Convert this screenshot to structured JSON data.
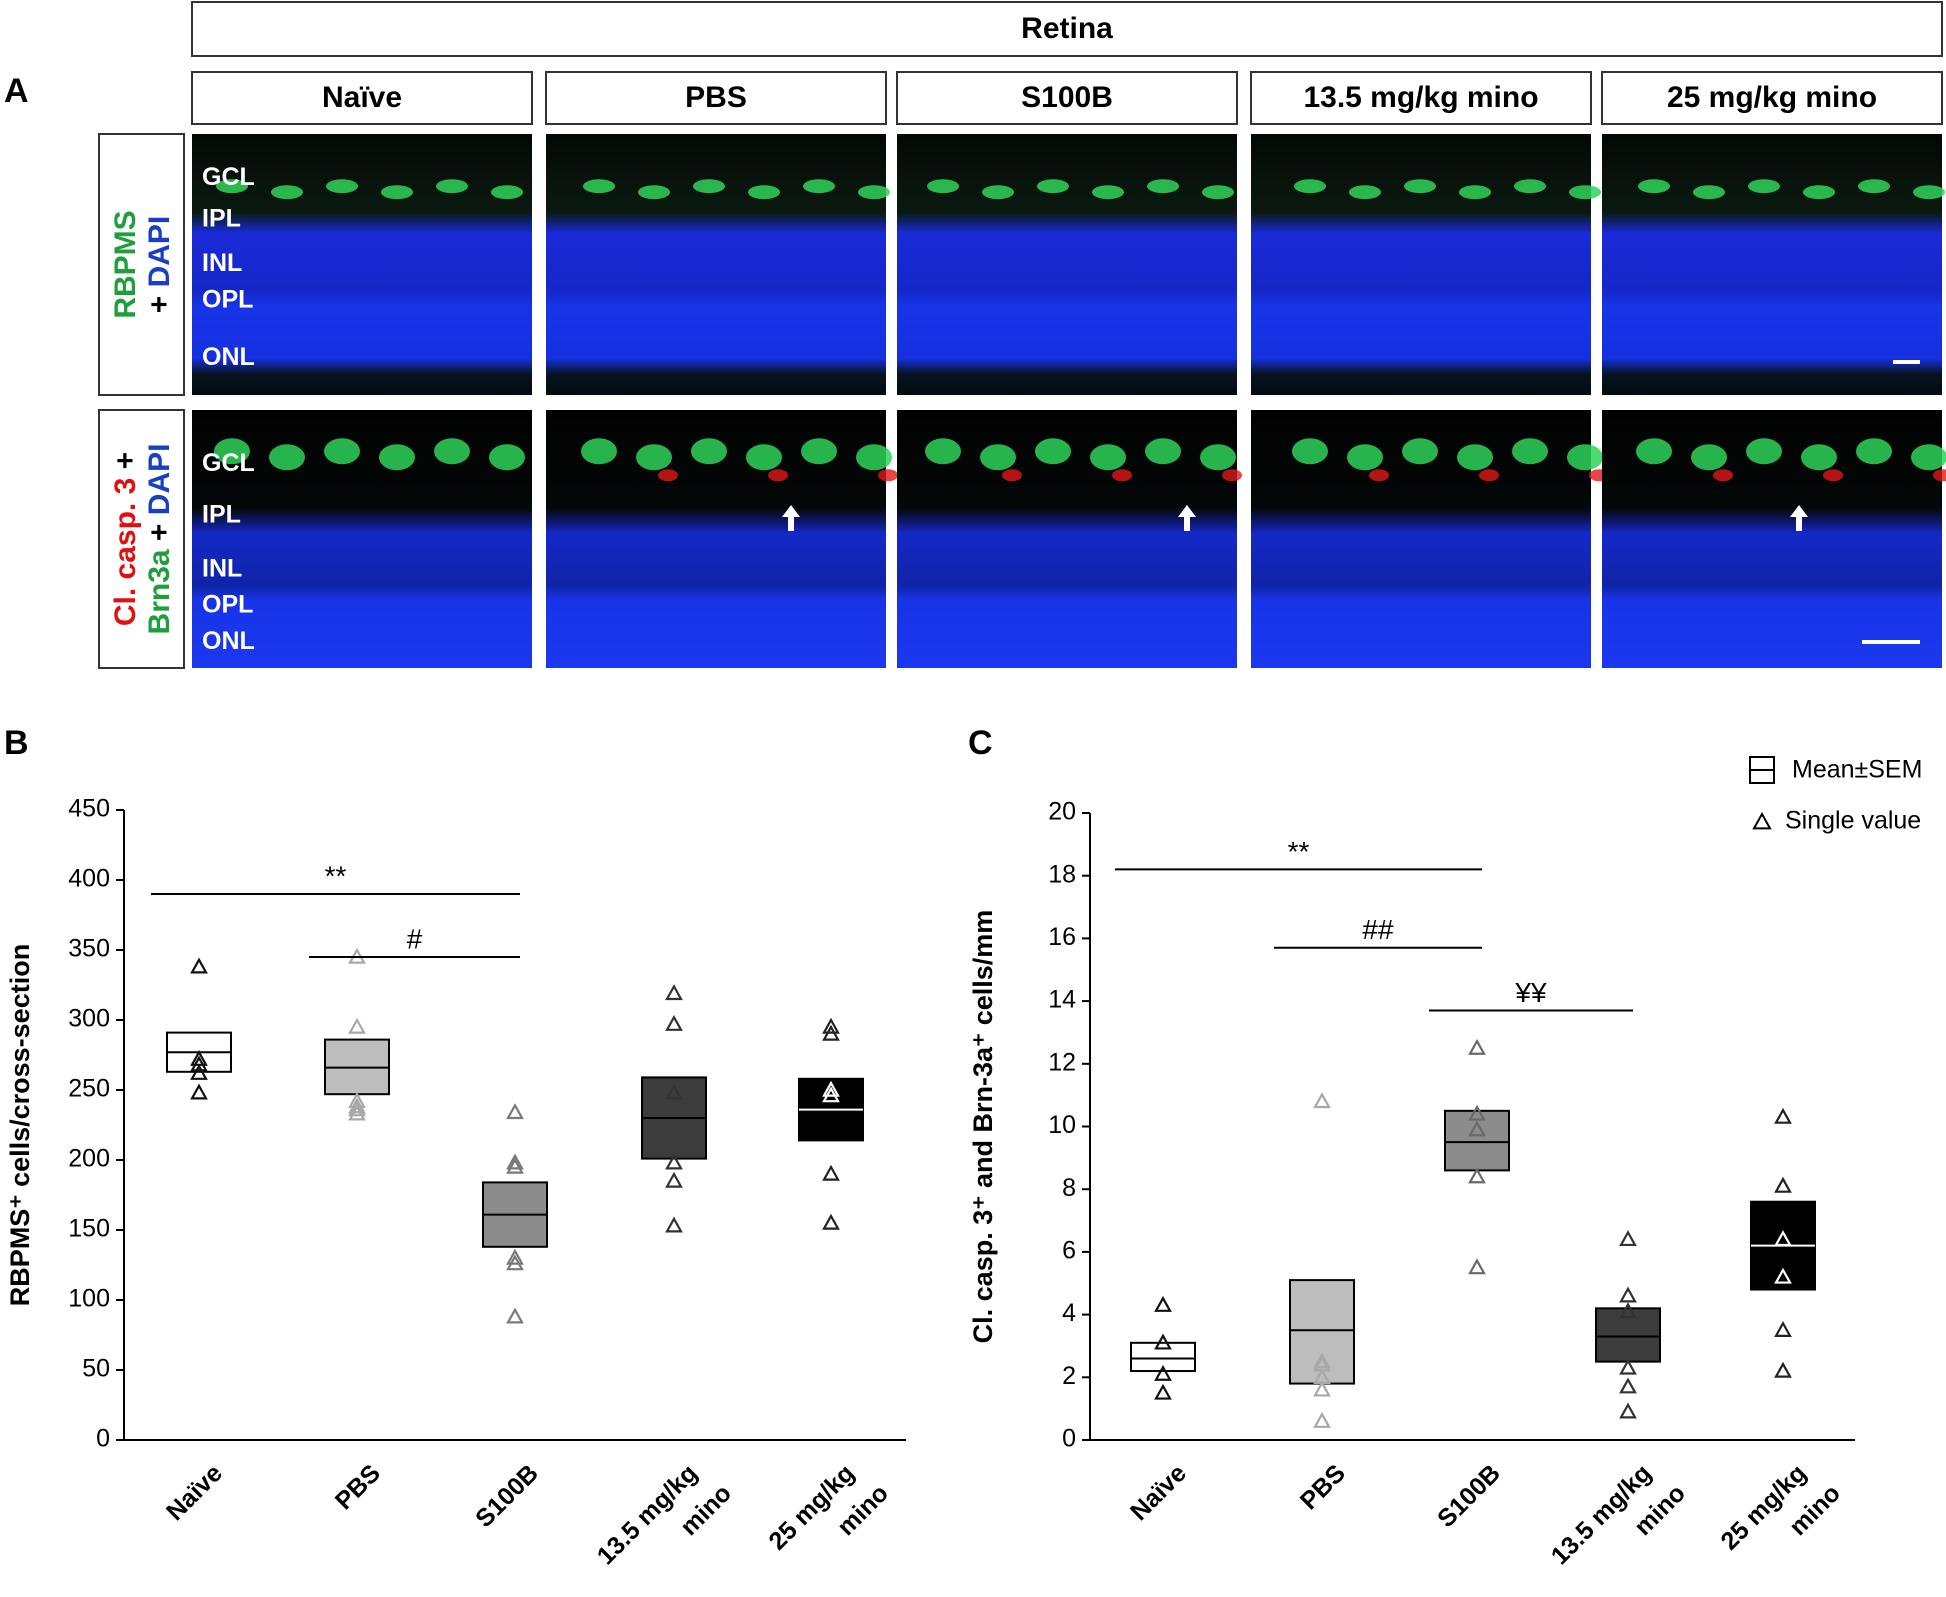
{
  "panel_a": {
    "letter": "A",
    "header": "Retina",
    "columns": [
      "Naïve",
      "PBS",
      "S100B",
      "13.5 mg/kg mino",
      "25 mg/kg mino"
    ],
    "row_labels": [
      [
        [
          {
            "text": "RBPMS",
            "color": "#1e9e3c"
          }
        ],
        [
          {
            "text": "+ ",
            "color": "#000000"
          },
          {
            "text": "DAPI",
            "color": "#1a3fc0"
          }
        ]
      ],
      [
        [
          {
            "text": "Cl. casp. 3",
            "color": "#e01010"
          },
          {
            "text": " +",
            "color": "#000000"
          }
        ],
        [
          {
            "text": "Brn3a",
            "color": "#1e9e3c"
          },
          {
            "text": " + ",
            "color": "#000000"
          },
          {
            "text": "DAPI",
            "color": "#1a3fc0"
          }
        ]
      ]
    ],
    "layers": [
      "GCL",
      "IPL",
      "INL",
      "OPL",
      "ONL"
    ]
  },
  "chart_data": [
    {
      "type": "box",
      "letter": "B",
      "ylabel": "RBPMS⁺ cells/cross-section",
      "categories": [
        [
          "Naïve"
        ],
        [
          "PBS"
        ],
        [
          "S100B"
        ],
        [
          "13.5 mg/kg",
          "mino"
        ],
        [
          "25 mg/kg",
          "mino"
        ]
      ],
      "ylim": [
        0,
        450
      ],
      "yticks": [
        0,
        50,
        100,
        150,
        200,
        250,
        300,
        350,
        400,
        450
      ],
      "groups": [
        {
          "mean": 277,
          "sem": [
            263,
            291
          ],
          "points": [
            338,
            272,
            268,
            262,
            248
          ],
          "box_color": "#ffffff",
          "line_color": "#000000",
          "point_color": "#111111"
        },
        {
          "mean": 266,
          "sem": [
            247,
            286
          ],
          "points": [
            345,
            295,
            242,
            238,
            236,
            233
          ],
          "box_color": "#bdbdbd",
          "line_color": "#000000",
          "point_color": "#a8a8a8"
        },
        {
          "mean": 161,
          "sem": [
            138,
            184
          ],
          "points": [
            234,
            198,
            195,
            130,
            126,
            88
          ],
          "box_color": "#8c8c8c",
          "line_color": "#000000",
          "point_color": "#7a7a7a"
        },
        {
          "mean": 230,
          "sem": [
            201,
            259
          ],
          "points": [
            319,
            297,
            248,
            198,
            185,
            153
          ],
          "box_color": "#3c3c3c",
          "line_color": "#000000",
          "point_color": "#333333"
        },
        {
          "mean": 236,
          "sem": [
            214,
            258
          ],
          "points": [
            295,
            290,
            250,
            246,
            190,
            155
          ],
          "box_color": "#000000",
          "line_color": "#ffffff",
          "point_color": "#222222"
        }
      ],
      "significance": [
        {
          "between": [
            0,
            2
          ],
          "y": 390,
          "label": "**"
        },
        {
          "between": [
            1,
            2
          ],
          "y": 345,
          "label": "#"
        }
      ]
    },
    {
      "type": "box",
      "letter": "C",
      "ylabel": "Cl. casp. 3⁺ and Brn-3a⁺ cells/mm",
      "categories": [
        [
          "Naïve"
        ],
        [
          "PBS"
        ],
        [
          "S100B"
        ],
        [
          "13.5 mg/kg",
          "mino"
        ],
        [
          "25 mg/kg",
          "mino"
        ]
      ],
      "ylim": [
        0,
        20
      ],
      "yticks": [
        0,
        2,
        4,
        6,
        8,
        10,
        12,
        14,
        16,
        18,
        20
      ],
      "legend": [
        "Mean±SEM",
        "Single value"
      ],
      "groups": [
        {
          "mean": 2.6,
          "sem": [
            2.2,
            3.1
          ],
          "points": [
            4.3,
            3.1,
            2.1,
            1.5
          ],
          "box_color": "#ffffff",
          "line_color": "#000000",
          "point_color": "#111111"
        },
        {
          "mean": 3.5,
          "sem": [
            1.8,
            5.1
          ],
          "points": [
            10.8,
            2.5,
            2.4,
            2.0,
            1.6,
            0.6
          ],
          "box_color": "#bdbdbd",
          "line_color": "#000000",
          "point_color": "#a8a8a8"
        },
        {
          "mean": 9.5,
          "sem": [
            8.6,
            10.5
          ],
          "points": [
            12.5,
            10.4,
            9.9,
            8.4,
            5.5
          ],
          "box_color": "#8c8c8c",
          "line_color": "#000000",
          "point_color": "#6a6a6a"
        },
        {
          "mean": 3.3,
          "sem": [
            2.5,
            4.2
          ],
          "points": [
            6.4,
            4.6,
            4.1,
            2.3,
            1.7,
            0.9
          ],
          "box_color": "#3c3c3c",
          "line_color": "#000000",
          "point_color": "#333333"
        },
        {
          "mean": 6.2,
          "sem": [
            4.8,
            7.6
          ],
          "points": [
            10.3,
            8.1,
            6.4,
            5.2,
            3.5,
            2.2
          ],
          "box_color": "#000000",
          "line_color": "#ffffff",
          "point_color": "#222222"
        }
      ],
      "significance": [
        {
          "between": [
            0,
            2
          ],
          "y": 18.2,
          "label": "**"
        },
        {
          "between": [
            1,
            2
          ],
          "y": 15.7,
          "label": "##"
        },
        {
          "between": [
            2,
            3
          ],
          "y": 13.7,
          "label": "¥¥"
        }
      ]
    }
  ]
}
